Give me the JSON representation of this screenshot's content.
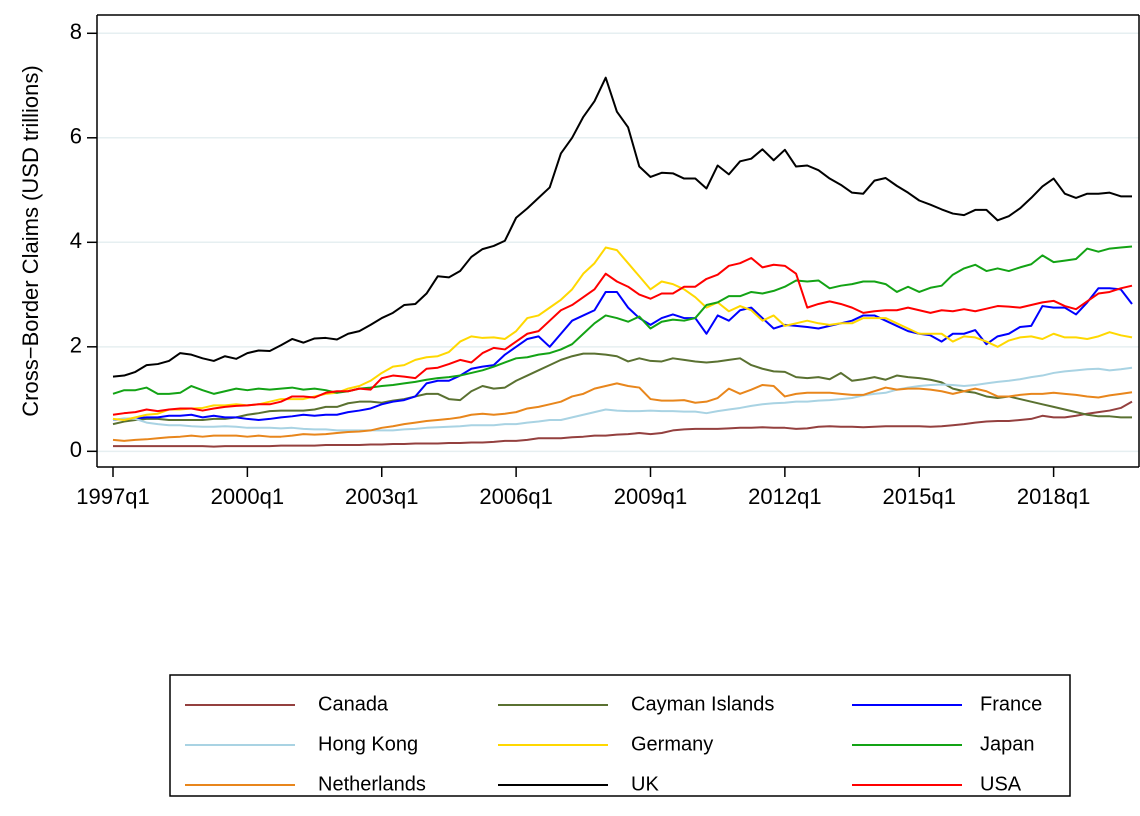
{
  "chart_data": {
    "type": "line",
    "y_label": "Cross−Border Claims (USD trillions)",
    "categories": [
      "1997q1",
      null,
      null,
      null,
      null,
      null,
      null,
      null,
      null,
      null,
      null,
      null,
      "2000q1",
      null,
      null,
      null,
      null,
      null,
      null,
      null,
      null,
      null,
      null,
      null,
      "2003q1",
      null,
      null,
      null,
      null,
      null,
      null,
      null,
      null,
      null,
      null,
      null,
      "2006q1",
      null,
      null,
      null,
      null,
      null,
      null,
      null,
      null,
      null,
      null,
      null,
      "2009q1",
      null,
      null,
      null,
      null,
      null,
      null,
      null,
      null,
      null,
      null,
      null,
      "2012q1",
      null,
      null,
      null,
      null,
      null,
      null,
      null,
      null,
      null,
      null,
      null,
      "2015q1",
      null,
      null,
      null,
      null,
      null,
      null,
      null,
      null,
      null,
      null,
      null,
      "2018q1",
      null,
      null,
      null,
      null,
      null,
      null,
      null
    ],
    "ylim": [
      -0.3,
      8.35
    ],
    "yticks": [
      0,
      2,
      4,
      6,
      8
    ],
    "grid": true,
    "legend_position": "bottom",
    "series": [
      {
        "name": "Canada",
        "color": "#94403f",
        "values": [
          0.1,
          0.1,
          0.1,
          0.1,
          0.1,
          0.1,
          0.1,
          0.1,
          0.1,
          0.09,
          0.1,
          0.1,
          0.1,
          0.1,
          0.1,
          0.11,
          0.11,
          0.11,
          0.11,
          0.12,
          0.12,
          0.12,
          0.12,
          0.13,
          0.13,
          0.14,
          0.14,
          0.15,
          0.15,
          0.15,
          0.16,
          0.16,
          0.17,
          0.17,
          0.18,
          0.2,
          0.2,
          0.22,
          0.25,
          0.25,
          0.25,
          0.27,
          0.28,
          0.3,
          0.3,
          0.32,
          0.33,
          0.35,
          0.33,
          0.35,
          0.4,
          0.42,
          0.43,
          0.43,
          0.43,
          0.44,
          0.45,
          0.45,
          0.46,
          0.45,
          0.45,
          0.43,
          0.44,
          0.47,
          0.48,
          0.47,
          0.47,
          0.46,
          0.47,
          0.48,
          0.48,
          0.48,
          0.48,
          0.47,
          0.48,
          0.5,
          0.52,
          0.55,
          0.57,
          0.58,
          0.58,
          0.6,
          0.62,
          0.68,
          0.65,
          0.65,
          0.68,
          0.72,
          0.75,
          0.78,
          0.83,
          0.95
        ]
      },
      {
        "name": "Cayman Islands",
        "color": "#5a7131",
        "values": [
          0.52,
          0.57,
          0.6,
          0.62,
          0.62,
          0.6,
          0.6,
          0.6,
          0.6,
          0.62,
          0.62,
          0.65,
          0.7,
          0.73,
          0.77,
          0.78,
          0.78,
          0.78,
          0.8,
          0.85,
          0.85,
          0.92,
          0.95,
          0.95,
          0.93,
          0.97,
          1.0,
          1.05,
          1.1,
          1.1,
          1.0,
          0.98,
          1.15,
          1.25,
          1.2,
          1.22,
          1.35,
          1.45,
          1.55,
          1.65,
          1.75,
          1.82,
          1.87,
          1.87,
          1.85,
          1.82,
          1.72,
          1.78,
          1.73,
          1.72,
          1.78,
          1.75,
          1.72,
          1.7,
          1.72,
          1.75,
          1.78,
          1.65,
          1.58,
          1.53,
          1.52,
          1.42,
          1.4,
          1.42,
          1.38,
          1.5,
          1.35,
          1.38,
          1.42,
          1.37,
          1.45,
          1.42,
          1.4,
          1.37,
          1.32,
          1.2,
          1.15,
          1.12,
          1.05,
          1.02,
          1.05,
          1.0,
          0.95,
          0.9,
          0.85,
          0.8,
          0.75,
          0.7,
          0.67,
          0.67,
          0.65,
          0.65
        ]
      },
      {
        "name": "France",
        "color": "#0000ff",
        "values": [
          0.6,
          0.62,
          0.63,
          0.65,
          0.65,
          0.68,
          0.68,
          0.7,
          0.65,
          0.68,
          0.65,
          0.65,
          0.62,
          0.6,
          0.62,
          0.65,
          0.67,
          0.7,
          0.68,
          0.7,
          0.7,
          0.75,
          0.78,
          0.82,
          0.9,
          0.95,
          0.98,
          1.05,
          1.3,
          1.35,
          1.35,
          1.45,
          1.58,
          1.62,
          1.65,
          1.85,
          2.0,
          2.15,
          2.2,
          2.0,
          2.25,
          2.5,
          2.6,
          2.7,
          3.05,
          3.05,
          2.75,
          2.55,
          2.42,
          2.55,
          2.62,
          2.55,
          2.55,
          2.25,
          2.6,
          2.5,
          2.7,
          2.75,
          2.55,
          2.35,
          2.42,
          2.4,
          2.38,
          2.35,
          2.4,
          2.45,
          2.5,
          2.6,
          2.6,
          2.5,
          2.4,
          2.3,
          2.25,
          2.22,
          2.1,
          2.25,
          2.25,
          2.32,
          2.05,
          2.2,
          2.25,
          2.38,
          2.4,
          2.78,
          2.75,
          2.75,
          2.62,
          2.85,
          3.12,
          3.12,
          3.1,
          2.82
        ]
      },
      {
        "name": "Hong Kong",
        "color": "#a9d3e3",
        "values": [
          0.6,
          0.63,
          0.62,
          0.55,
          0.52,
          0.5,
          0.5,
          0.48,
          0.47,
          0.47,
          0.48,
          0.47,
          0.45,
          0.45,
          0.45,
          0.44,
          0.45,
          0.43,
          0.42,
          0.42,
          0.4,
          0.4,
          0.4,
          0.4,
          0.4,
          0.4,
          0.42,
          0.43,
          0.45,
          0.46,
          0.47,
          0.48,
          0.5,
          0.5,
          0.5,
          0.52,
          0.52,
          0.55,
          0.57,
          0.6,
          0.6,
          0.65,
          0.7,
          0.75,
          0.8,
          0.78,
          0.77,
          0.77,
          0.78,
          0.77,
          0.77,
          0.76,
          0.76,
          0.73,
          0.77,
          0.8,
          0.83,
          0.87,
          0.9,
          0.92,
          0.93,
          0.95,
          0.95,
          0.97,
          0.98,
          1.0,
          1.02,
          1.07,
          1.1,
          1.12,
          1.18,
          1.22,
          1.25,
          1.27,
          1.28,
          1.27,
          1.25,
          1.27,
          1.3,
          1.33,
          1.35,
          1.38,
          1.42,
          1.45,
          1.5,
          1.53,
          1.55,
          1.57,
          1.58,
          1.55,
          1.57,
          1.6
        ]
      },
      {
        "name": "Germany",
        "color": "#ffd800",
        "values": [
          0.62,
          0.6,
          0.65,
          0.7,
          0.72,
          0.8,
          0.8,
          0.82,
          0.83,
          0.88,
          0.88,
          0.9,
          0.88,
          0.9,
          0.95,
          1.0,
          1.0,
          1.0,
          1.05,
          1.1,
          1.12,
          1.2,
          1.25,
          1.35,
          1.5,
          1.62,
          1.65,
          1.75,
          1.8,
          1.82,
          1.9,
          2.1,
          2.2,
          2.17,
          2.18,
          2.15,
          2.3,
          2.55,
          2.6,
          2.75,
          2.9,
          3.1,
          3.4,
          3.6,
          3.9,
          3.85,
          3.6,
          3.35,
          3.1,
          3.25,
          3.2,
          3.1,
          2.95,
          2.75,
          2.85,
          2.68,
          2.78,
          2.7,
          2.5,
          2.6,
          2.4,
          2.45,
          2.5,
          2.45,
          2.42,
          2.45,
          2.45,
          2.55,
          2.55,
          2.55,
          2.45,
          2.35,
          2.25,
          2.25,
          2.25,
          2.1,
          2.2,
          2.18,
          2.1,
          2.0,
          2.12,
          2.18,
          2.2,
          2.15,
          2.25,
          2.18,
          2.18,
          2.15,
          2.2,
          2.28,
          2.22,
          2.18
        ]
      },
      {
        "name": "Japan",
        "color": "#13a315",
        "values": [
          1.1,
          1.17,
          1.17,
          1.22,
          1.1,
          1.1,
          1.12,
          1.25,
          1.17,
          1.1,
          1.15,
          1.2,
          1.17,
          1.2,
          1.18,
          1.2,
          1.22,
          1.18,
          1.2,
          1.17,
          1.12,
          1.15,
          1.2,
          1.22,
          1.25,
          1.27,
          1.3,
          1.33,
          1.37,
          1.4,
          1.42,
          1.45,
          1.5,
          1.55,
          1.62,
          1.7,
          1.78,
          1.8,
          1.85,
          1.88,
          1.95,
          2.05,
          2.25,
          2.45,
          2.6,
          2.55,
          2.48,
          2.58,
          2.35,
          2.48,
          2.52,
          2.5,
          2.55,
          2.8,
          2.85,
          2.97,
          2.97,
          3.05,
          3.02,
          3.07,
          3.15,
          3.27,
          3.25,
          3.27,
          3.12,
          3.17,
          3.2,
          3.25,
          3.25,
          3.2,
          3.05,
          3.15,
          3.05,
          3.13,
          3.17,
          3.38,
          3.5,
          3.57,
          3.45,
          3.5,
          3.45,
          3.52,
          3.58,
          3.75,
          3.62,
          3.65,
          3.68,
          3.88,
          3.82,
          3.88,
          3.9,
          3.92
        ]
      },
      {
        "name": "Netherlands",
        "color": "#e8861c",
        "values": [
          0.22,
          0.2,
          0.22,
          0.23,
          0.25,
          0.27,
          0.28,
          0.3,
          0.28,
          0.3,
          0.3,
          0.3,
          0.28,
          0.3,
          0.28,
          0.28,
          0.3,
          0.33,
          0.32,
          0.33,
          0.35,
          0.37,
          0.38,
          0.4,
          0.45,
          0.48,
          0.52,
          0.55,
          0.58,
          0.6,
          0.62,
          0.65,
          0.7,
          0.72,
          0.7,
          0.72,
          0.75,
          0.82,
          0.85,
          0.9,
          0.95,
          1.05,
          1.1,
          1.2,
          1.25,
          1.3,
          1.25,
          1.22,
          1.0,
          0.97,
          0.97,
          0.98,
          0.93,
          0.95,
          1.02,
          1.2,
          1.1,
          1.18,
          1.27,
          1.25,
          1.05,
          1.1,
          1.12,
          1.12,
          1.12,
          1.1,
          1.08,
          1.08,
          1.15,
          1.22,
          1.18,
          1.2,
          1.2,
          1.18,
          1.15,
          1.1,
          1.15,
          1.2,
          1.15,
          1.05,
          1.05,
          1.08,
          1.1,
          1.1,
          1.12,
          1.1,
          1.08,
          1.05,
          1.03,
          1.07,
          1.1,
          1.13
        ]
      },
      {
        "name": "UK",
        "color": "#000000",
        "values": [
          1.43,
          1.45,
          1.52,
          1.65,
          1.67,
          1.73,
          1.88,
          1.85,
          1.78,
          1.73,
          1.82,
          1.77,
          1.88,
          1.93,
          1.92,
          2.03,
          2.15,
          2.08,
          2.16,
          2.17,
          2.14,
          2.25,
          2.3,
          2.42,
          2.55,
          2.65,
          2.8,
          2.82,
          3.02,
          3.35,
          3.33,
          3.45,
          3.72,
          3.87,
          3.93,
          4.03,
          4.47,
          4.65,
          4.85,
          5.05,
          5.7,
          6.0,
          6.4,
          6.7,
          7.15,
          6.5,
          6.2,
          5.45,
          5.25,
          5.33,
          5.32,
          5.22,
          5.22,
          5.03,
          5.47,
          5.3,
          5.55,
          5.6,
          5.78,
          5.57,
          5.77,
          5.45,
          5.47,
          5.38,
          5.22,
          5.1,
          4.95,
          4.93,
          5.18,
          5.23,
          5.08,
          4.95,
          4.8,
          4.72,
          4.63,
          4.55,
          4.52,
          4.62,
          4.62,
          4.42,
          4.5,
          4.65,
          4.85,
          5.07,
          5.22,
          4.93,
          4.85,
          4.93,
          4.93,
          4.95,
          4.88,
          4.88
        ]
      },
      {
        "name": "USA",
        "color": "#ff0000",
        "values": [
          0.7,
          0.73,
          0.75,
          0.8,
          0.77,
          0.8,
          0.82,
          0.82,
          0.78,
          0.82,
          0.85,
          0.87,
          0.88,
          0.9,
          0.9,
          0.95,
          1.05,
          1.05,
          1.03,
          1.12,
          1.15,
          1.15,
          1.2,
          1.18,
          1.4,
          1.45,
          1.43,
          1.4,
          1.58,
          1.6,
          1.67,
          1.75,
          1.7,
          1.88,
          1.98,
          1.95,
          2.1,
          2.25,
          2.3,
          2.5,
          2.7,
          2.8,
          2.95,
          3.1,
          3.4,
          3.25,
          3.15,
          3.0,
          2.92,
          3.02,
          3.02,
          3.15,
          3.15,
          3.3,
          3.38,
          3.55,
          3.6,
          3.7,
          3.52,
          3.57,
          3.55,
          3.4,
          2.75,
          2.82,
          2.87,
          2.82,
          2.75,
          2.65,
          2.68,
          2.7,
          2.7,
          2.75,
          2.7,
          2.65,
          2.7,
          2.68,
          2.72,
          2.68,
          2.73,
          2.78,
          2.77,
          2.75,
          2.8,
          2.85,
          2.88,
          2.78,
          2.72,
          2.87,
          3.02,
          3.05,
          3.12,
          3.17
        ]
      }
    ]
  }
}
